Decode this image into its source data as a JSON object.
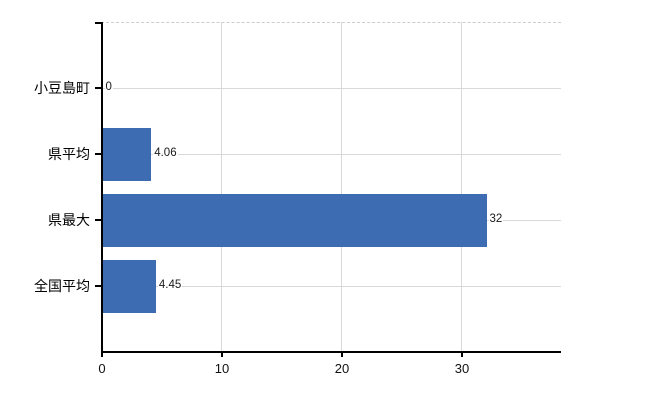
{
  "chart_data": {
    "type": "bar",
    "orientation": "horizontal",
    "title": "",
    "xlabel": "",
    "ylabel": "",
    "categories": [
      "小豆島町",
      "県平均",
      "県最大",
      "全国平均"
    ],
    "values": [
      0,
      4.06,
      32,
      4.45
    ],
    "value_labels": [
      "0",
      "4.06",
      "32",
      "4.45"
    ],
    "x_ticks": [
      0,
      10,
      20,
      30
    ],
    "x_tick_labels": [
      "0",
      "10",
      "20",
      "30"
    ],
    "xlim": [
      0,
      38.33
    ],
    "grid": true,
    "legend": "none",
    "bar_color": "#3e6cb2",
    "gridline_color": "#d9d9d9",
    "top_border_color": "#cccccc",
    "axis_color": "#000000",
    "label_color": "#1a1a1a"
  }
}
